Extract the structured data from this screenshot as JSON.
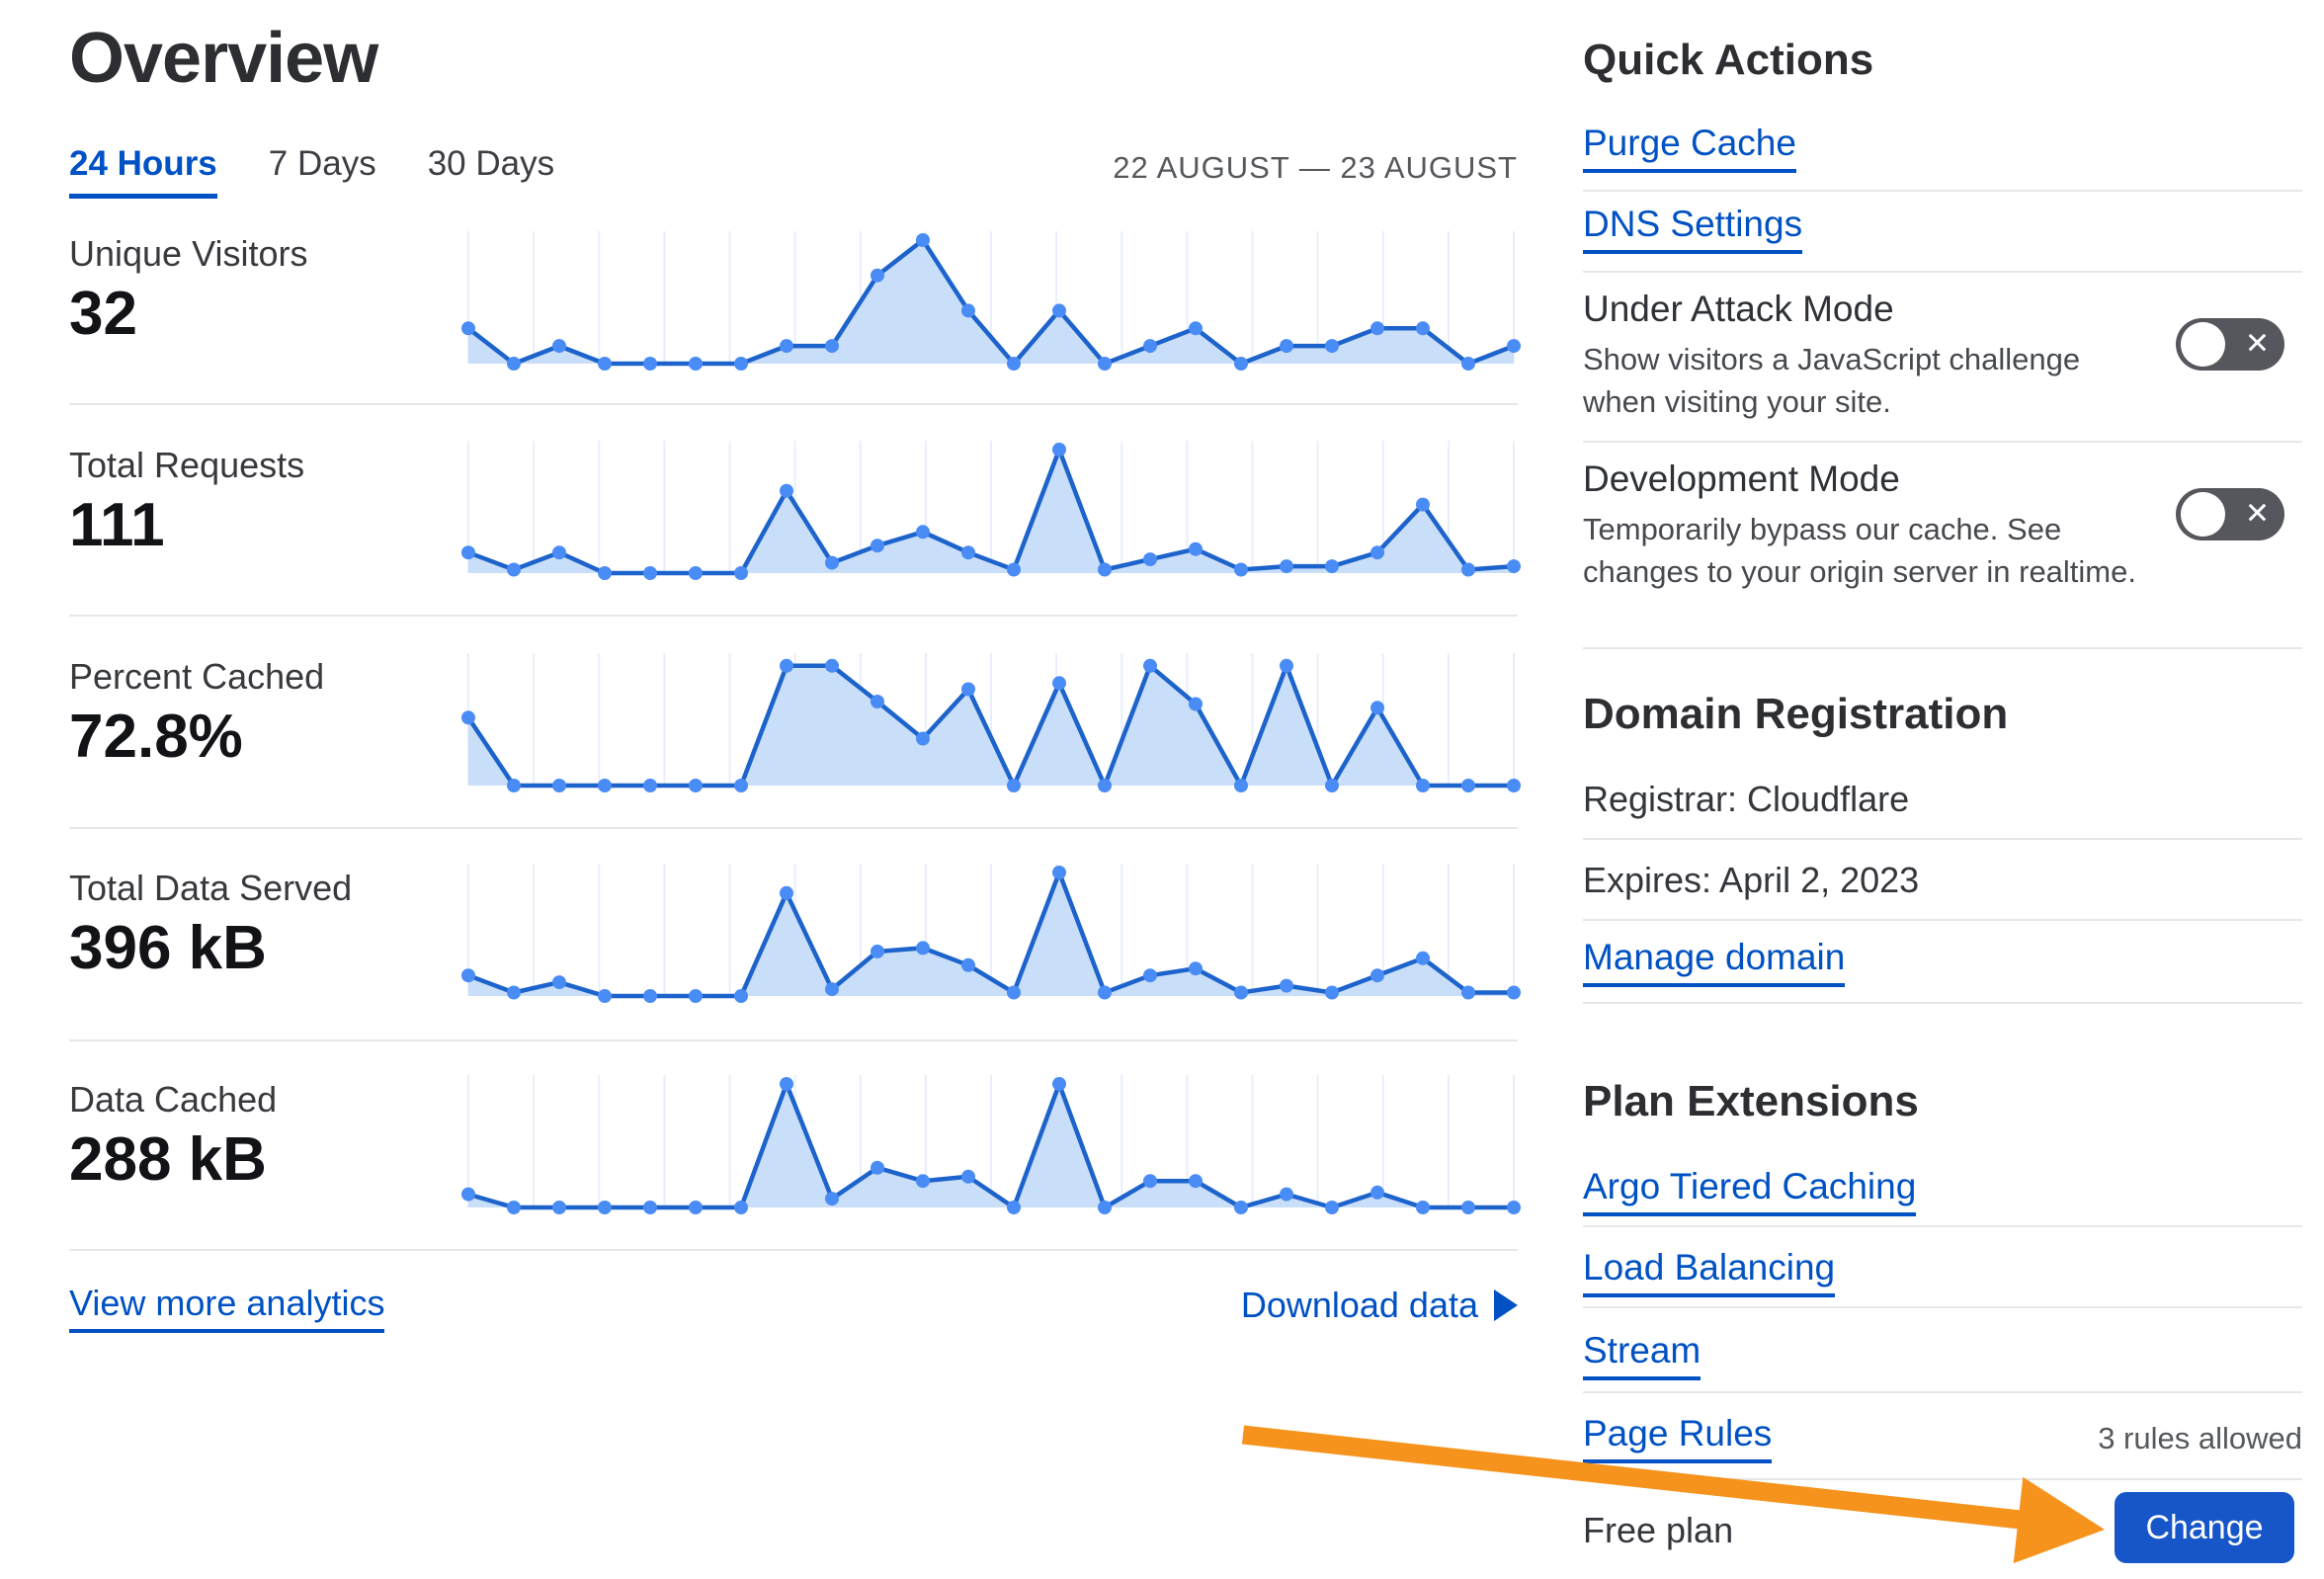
{
  "page": {
    "title": "Overview"
  },
  "tabs": [
    {
      "label": "24 Hours",
      "active": true
    },
    {
      "label": "7 Days",
      "active": false
    },
    {
      "label": "30 Days",
      "active": false
    }
  ],
  "date_range": "22 AUGUST — 23 AUGUST",
  "metrics": [
    {
      "label": "Unique Visitors",
      "value": "32"
    },
    {
      "label": "Total Requests",
      "value": "111"
    },
    {
      "label": "Percent Cached",
      "value": "72.8%"
    },
    {
      "label": "Total Data Served",
      "value": "396 kB"
    },
    {
      "label": "Data Cached",
      "value": "288 kB"
    }
  ],
  "chart_data": [
    {
      "type": "area",
      "title": "Unique Visitors",
      "total_label": "32",
      "x_range": "24 hourly points, 22 August — 23 August",
      "grid": true,
      "ymax": 7,
      "values": [
        2,
        0,
        1,
        0,
        0,
        0,
        0,
        1,
        1,
        5,
        7,
        3,
        0,
        3,
        0,
        1,
        2,
        0,
        1,
        1,
        2,
        2,
        0,
        1
      ]
    },
    {
      "type": "area",
      "title": "Total Requests",
      "total_label": "111",
      "x_range": "24 hourly points, 22 August — 23 August",
      "grid": true,
      "ymax": 18,
      "values": [
        3,
        0.5,
        3,
        0,
        0,
        0,
        0,
        12,
        1.5,
        4,
        6,
        3,
        0.5,
        18,
        0.5,
        2,
        3.5,
        0.5,
        1,
        1,
        3,
        10,
        0.5,
        1
      ]
    },
    {
      "type": "area",
      "title": "Percent Cached",
      "total_label": "72.8%",
      "x_range": "24 hourly points, 22 August — 23 August",
      "grid": true,
      "ymax": 100,
      "values": [
        55,
        0,
        0,
        0,
        0,
        0,
        0,
        97,
        97,
        68,
        38,
        78,
        0,
        83,
        0,
        97,
        66,
        0,
        97,
        0,
        63,
        0,
        0,
        0
      ]
    },
    {
      "type": "area",
      "title": "Total Data Served",
      "total_label": "396 kB",
      "x_range": "24 hourly points, 22 August — 23 August",
      "grid": true,
      "ymax": 18,
      "values": [
        3,
        0.5,
        2,
        0,
        0,
        0,
        0,
        15,
        1,
        6.5,
        7,
        4.5,
        0.5,
        18,
        0.5,
        3,
        4,
        0.5,
        1.5,
        0.5,
        3,
        5.5,
        0.5,
        0.5
      ]
    },
    {
      "type": "area",
      "title": "Data Cached",
      "total_label": "288 kB",
      "x_range": "24 hourly points, 22 August — 23 August",
      "grid": true,
      "ymax": 14,
      "values": [
        1.5,
        0,
        0,
        0,
        0,
        0,
        0,
        14,
        1,
        4.5,
        3,
        3.5,
        0,
        14,
        0,
        3,
        3,
        0,
        1.5,
        0,
        1.7,
        0,
        0,
        0
      ]
    }
  ],
  "footer": {
    "view_more": "View more analytics",
    "download": "Download data"
  },
  "quick_actions": {
    "heading": "Quick Actions",
    "links": [
      {
        "label": "Purge Cache"
      },
      {
        "label": "DNS Settings"
      }
    ],
    "under_attack": {
      "title": "Under Attack Mode",
      "desc_lines": [
        "Show visitors a JavaScript challenge",
        "when visiting your site."
      ],
      "state": "off"
    },
    "development": {
      "title": "Development Mode",
      "desc_lines": [
        "Temporarily bypass our cache. See",
        "changes to your origin server in realtime."
      ],
      "state": "off"
    }
  },
  "domain_registration": {
    "heading": "Domain Registration",
    "registrar": "Registrar: Cloudflare",
    "expires": "Expires: April 2, 2023",
    "manage": "Manage domain"
  },
  "plan_extensions": {
    "heading": "Plan Extensions",
    "links": [
      {
        "label": "Argo Tiered Caching"
      },
      {
        "label": "Load Balancing"
      },
      {
        "label": "Stream"
      },
      {
        "label": "Page Rules",
        "note": "3 rules allowed"
      }
    ]
  },
  "plan": {
    "name": "Free plan",
    "change_label": "Change"
  },
  "icons": {
    "toggle_x": "✕"
  },
  "colors": {
    "link_blue": "#0051c3",
    "chart_line": "#1d63cc",
    "chart_dot": "#4a8cf5",
    "chart_fill": "#c9def8",
    "chart_grid": "#e8effb",
    "toggle_bg": "#55575c",
    "button_blue": "#1656c9",
    "arrow_orange": "#f6931d"
  }
}
